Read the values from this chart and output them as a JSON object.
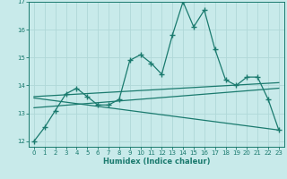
{
  "xlabel": "Humidex (Indice chaleur)",
  "bg_color": "#c8eaea",
  "line_color": "#1a7a6e",
  "grid_color": "#b0d8d8",
  "xlim": [
    -0.5,
    23.5
  ],
  "ylim": [
    11.8,
    17.0
  ],
  "yticks": [
    12,
    13,
    14,
    15,
    16,
    17
  ],
  "xticks": [
    0,
    1,
    2,
    3,
    4,
    5,
    6,
    7,
    8,
    9,
    10,
    11,
    12,
    13,
    14,
    15,
    16,
    17,
    18,
    19,
    20,
    21,
    22,
    23
  ],
  "main_x": [
    0,
    1,
    2,
    3,
    4,
    5,
    6,
    7,
    8,
    9,
    10,
    11,
    12,
    13,
    14,
    15,
    16,
    17,
    18,
    19,
    20,
    21,
    22,
    23
  ],
  "main_y": [
    12.0,
    12.5,
    13.1,
    13.7,
    13.9,
    13.6,
    13.3,
    13.3,
    13.5,
    14.9,
    15.1,
    14.8,
    14.4,
    15.8,
    17.0,
    16.1,
    16.7,
    15.3,
    14.2,
    14.0,
    14.3,
    14.3,
    13.5,
    12.4
  ],
  "trend1_x": [
    0,
    23
  ],
  "trend1_y": [
    13.6,
    14.1
  ],
  "trend2_x": [
    0,
    23
  ],
  "trend2_y": [
    13.2,
    13.9
  ],
  "trend3_x": [
    0,
    23
  ],
  "trend3_y": [
    13.55,
    12.4
  ]
}
